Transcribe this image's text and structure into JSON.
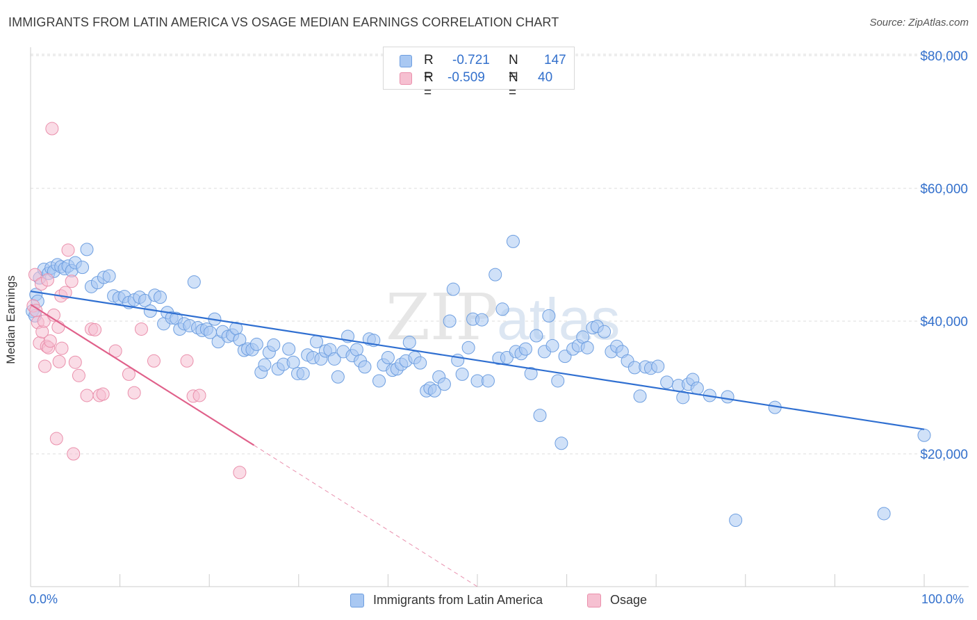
{
  "title": "IMMIGRANTS FROM LATIN AMERICA VS OSAGE MEDIAN EARNINGS CORRELATION CHART",
  "source": "Source: ZipAtlas.com",
  "watermark": "ZIPatlas",
  "legend_top": {
    "rows": [
      {
        "r_label": "R =",
        "r_value": "-0.721",
        "n_label": "N =",
        "n_value": "147",
        "color": "#a9c8f2",
        "stroke": "#6d9ee0"
      },
      {
        "r_label": "R =",
        "r_value": "-0.509",
        "n_label": "N =",
        "n_value": "40",
        "color": "#f6c0d1",
        "stroke": "#ea8fab"
      }
    ]
  },
  "legend_bottom": [
    {
      "label": "Immigrants from Latin America",
      "color": "#a9c8f2",
      "stroke": "#6d9ee0"
    },
    {
      "label": "Osage",
      "color": "#f6c0d1",
      "stroke": "#ea8fab"
    }
  ],
  "chart_data": {
    "type": "scatter",
    "title": "IMMIGRANTS FROM LATIN AMERICA VS OSAGE MEDIAN EARNINGS CORRELATION CHART",
    "xlabel": "",
    "ylabel": "Median Earnings",
    "xlim": [
      0,
      100
    ],
    "ylim": [
      0,
      82000
    ],
    "x_tick_labels": [
      "0.0%",
      "100.0%"
    ],
    "y_ticks": [
      20000,
      40000,
      60000,
      80000
    ],
    "y_tick_labels": [
      "$20,000",
      "$40,000",
      "$60,000",
      "$80,000"
    ],
    "grid": true,
    "legend_position": "top-center",
    "series": [
      {
        "name": "Immigrants from Latin America",
        "color": "#a9c8f2",
        "stroke": "#6d9ee0",
        "trend": {
          "x": [
            0,
            100
          ],
          "y": [
            44500,
            23700
          ],
          "color": "#2f6fd1"
        },
        "points": [
          [
            0.2,
            41500
          ],
          [
            0.5,
            40800
          ],
          [
            0.6,
            44000
          ],
          [
            0.8,
            43000
          ],
          [
            1.0,
            46500
          ],
          [
            1.5,
            47800
          ],
          [
            2.0,
            47200
          ],
          [
            2.3,
            48000
          ],
          [
            2.6,
            47500
          ],
          [
            3.0,
            48500
          ],
          [
            3.4,
            48200
          ],
          [
            3.8,
            47900
          ],
          [
            4.2,
            48300
          ],
          [
            4.6,
            47600
          ],
          [
            5.0,
            48800
          ],
          [
            5.8,
            48100
          ],
          [
            6.3,
            50800
          ],
          [
            6.8,
            45200
          ],
          [
            7.5,
            45800
          ],
          [
            8.2,
            46600
          ],
          [
            8.8,
            46800
          ],
          [
            9.3,
            43800
          ],
          [
            9.9,
            43500
          ],
          [
            10.5,
            43700
          ],
          [
            11.0,
            42800
          ],
          [
            11.6,
            43200
          ],
          [
            12.2,
            43600
          ],
          [
            12.8,
            43100
          ],
          [
            13.4,
            41500
          ],
          [
            13.9,
            43900
          ],
          [
            14.5,
            43600
          ],
          [
            14.9,
            39600
          ],
          [
            15.3,
            41300
          ],
          [
            15.8,
            40500
          ],
          [
            16.3,
            40400
          ],
          [
            16.7,
            38800
          ],
          [
            17.2,
            39600
          ],
          [
            17.8,
            39300
          ],
          [
            18.3,
            45900
          ],
          [
            18.7,
            39000
          ],
          [
            19.2,
            38600
          ],
          [
            19.7,
            38800
          ],
          [
            20.1,
            38300
          ],
          [
            20.6,
            40300
          ],
          [
            21.0,
            36900
          ],
          [
            21.5,
            38400
          ],
          [
            22.1,
            37700
          ],
          [
            22.6,
            37900
          ],
          [
            23.0,
            38900
          ],
          [
            23.4,
            37200
          ],
          [
            23.9,
            35600
          ],
          [
            24.3,
            35800
          ],
          [
            24.8,
            35700
          ],
          [
            25.3,
            36500
          ],
          [
            25.8,
            32300
          ],
          [
            26.2,
            33400
          ],
          [
            26.7,
            35300
          ],
          [
            27.2,
            36400
          ],
          [
            27.7,
            32800
          ],
          [
            28.3,
            33500
          ],
          [
            28.9,
            35800
          ],
          [
            29.4,
            33800
          ],
          [
            29.9,
            32100
          ],
          [
            30.5,
            32100
          ],
          [
            31.0,
            34900
          ],
          [
            31.6,
            34500
          ],
          [
            32.0,
            36900
          ],
          [
            32.5,
            34300
          ],
          [
            33.0,
            35500
          ],
          [
            33.5,
            35700
          ],
          [
            34.0,
            34300
          ],
          [
            34.4,
            31600
          ],
          [
            35.0,
            35400
          ],
          [
            35.5,
            37700
          ],
          [
            36.0,
            34800
          ],
          [
            36.5,
            35700
          ],
          [
            36.9,
            34000
          ],
          [
            37.4,
            33100
          ],
          [
            37.9,
            37300
          ],
          [
            38.4,
            37100
          ],
          [
            39.0,
            31000
          ],
          [
            39.5,
            33400
          ],
          [
            40.0,
            34500
          ],
          [
            40.5,
            32600
          ],
          [
            41.0,
            32800
          ],
          [
            41.5,
            33500
          ],
          [
            42.0,
            34000
          ],
          [
            42.4,
            36800
          ],
          [
            43.0,
            34500
          ],
          [
            43.6,
            33700
          ],
          [
            44.3,
            29500
          ],
          [
            44.7,
            29900
          ],
          [
            45.2,
            29500
          ],
          [
            45.7,
            31600
          ],
          [
            46.3,
            30500
          ],
          [
            46.9,
            40000
          ],
          [
            47.3,
            44800
          ],
          [
            47.8,
            34100
          ],
          [
            48.3,
            32000
          ],
          [
            49.0,
            36000
          ],
          [
            49.5,
            40300
          ],
          [
            50.0,
            31000
          ],
          [
            50.5,
            40200
          ],
          [
            51.2,
            31000
          ],
          [
            52.0,
            47000
          ],
          [
            52.4,
            34400
          ],
          [
            52.8,
            41800
          ],
          [
            53.3,
            34500
          ],
          [
            54.0,
            52000
          ],
          [
            54.3,
            35400
          ],
          [
            54.9,
            35100
          ],
          [
            55.4,
            35800
          ],
          [
            56.0,
            32100
          ],
          [
            56.6,
            37800
          ],
          [
            57.0,
            25800
          ],
          [
            57.5,
            35400
          ],
          [
            58.0,
            40800
          ],
          [
            58.4,
            36300
          ],
          [
            59.0,
            31000
          ],
          [
            59.4,
            21600
          ],
          [
            59.8,
            34700
          ],
          [
            60.7,
            35800
          ],
          [
            61.3,
            36300
          ],
          [
            61.8,
            37600
          ],
          [
            62.3,
            36000
          ],
          [
            62.9,
            39000
          ],
          [
            63.4,
            39200
          ],
          [
            64.2,
            38400
          ],
          [
            65.0,
            35400
          ],
          [
            65.6,
            36200
          ],
          [
            66.2,
            35400
          ],
          [
            66.8,
            34000
          ],
          [
            67.6,
            33000
          ],
          [
            68.2,
            28700
          ],
          [
            68.8,
            33100
          ],
          [
            69.4,
            32900
          ],
          [
            70.2,
            33200
          ],
          [
            71.2,
            30800
          ],
          [
            72.5,
            30300
          ],
          [
            73.0,
            28500
          ],
          [
            73.6,
            30500
          ],
          [
            74.1,
            31200
          ],
          [
            74.6,
            29900
          ],
          [
            76.0,
            28800
          ],
          [
            78.0,
            28600
          ],
          [
            78.9,
            10000
          ],
          [
            83.3,
            27000
          ],
          [
            95.5,
            11000
          ],
          [
            100.0,
            22800
          ]
        ]
      },
      {
        "name": "Osage",
        "color": "#f6c0d1",
        "stroke": "#ea8fab",
        "trend": {
          "x": [
            0,
            25
          ],
          "y": [
            42500,
            21300
          ],
          "dash_to": [
            50,
            0
          ],
          "color": "#e0608a"
        },
        "points": [
          [
            0.3,
            42300
          ],
          [
            0.5,
            47000
          ],
          [
            0.6,
            41600
          ],
          [
            0.8,
            39800
          ],
          [
            1.0,
            36700
          ],
          [
            1.2,
            45600
          ],
          [
            1.3,
            38400
          ],
          [
            1.5,
            40000
          ],
          [
            1.6,
            33200
          ],
          [
            1.8,
            36200
          ],
          [
            1.9,
            46200
          ],
          [
            2.0,
            36000
          ],
          [
            2.2,
            37000
          ],
          [
            2.4,
            69000
          ],
          [
            2.6,
            40900
          ],
          [
            2.9,
            22300
          ],
          [
            3.1,
            39100
          ],
          [
            3.2,
            33900
          ],
          [
            3.4,
            43800
          ],
          [
            3.5,
            35900
          ],
          [
            3.9,
            44300
          ],
          [
            4.2,
            50700
          ],
          [
            4.6,
            46000
          ],
          [
            4.8,
            20000
          ],
          [
            5.0,
            33800
          ],
          [
            5.4,
            31800
          ],
          [
            6.3,
            28800
          ],
          [
            6.8,
            38800
          ],
          [
            7.2,
            38700
          ],
          [
            7.7,
            28800
          ],
          [
            8.1,
            29000
          ],
          [
            9.5,
            35500
          ],
          [
            11.0,
            32000
          ],
          [
            11.6,
            29200
          ],
          [
            12.4,
            38800
          ],
          [
            13.8,
            34000
          ],
          [
            17.5,
            34000
          ],
          [
            18.2,
            28700
          ],
          [
            18.9,
            28800
          ],
          [
            23.4,
            17200
          ]
        ]
      }
    ]
  }
}
